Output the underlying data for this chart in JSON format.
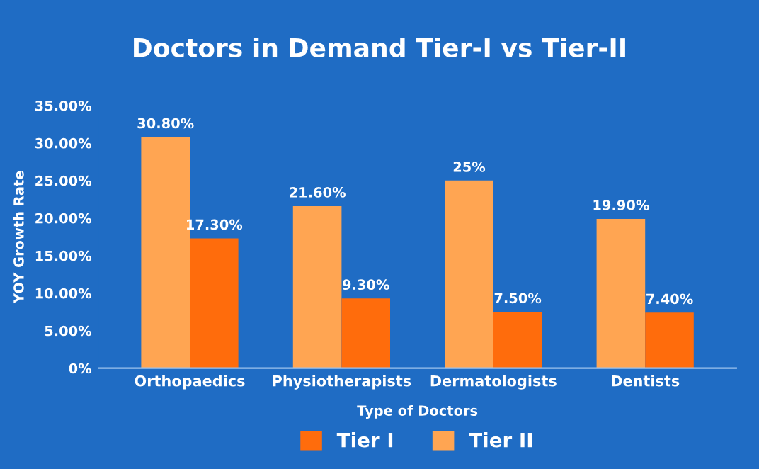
{
  "chart_data": {
    "type": "bar",
    "title": "Doctors in Demand Tier-I vs Tier-II",
    "xlabel": "Type of Doctors",
    "ylabel": "YOY Growth Rate",
    "categories": [
      "Orthopaedics",
      "Physiotherapists",
      "Dermatologists",
      "Dentists"
    ],
    "series": [
      {
        "name": "Tier II",
        "color": "#ffa552",
        "values": [
          30.8,
          21.6,
          25,
          19.9
        ],
        "value_labels": [
          "30.80%",
          "21.60%",
          "25%",
          "19.90%"
        ]
      },
      {
        "name": "Tier I",
        "color": "#ff6c0c",
        "values": [
          17.3,
          9.3,
          7.5,
          7.4
        ],
        "value_labels": [
          "17.30%",
          "9.30%",
          "7.50%",
          "7.40%"
        ]
      }
    ],
    "ylim": [
      0,
      35
    ],
    "yticks": [
      {
        "value": 0,
        "label": "0%"
      },
      {
        "value": 5,
        "label": "5.00%"
      },
      {
        "value": 10,
        "label": "10.00%"
      },
      {
        "value": 15,
        "label": "15.00%"
      },
      {
        "value": 20,
        "label": "20.00%"
      },
      {
        "value": 25,
        "label": "25.00%"
      },
      {
        "value": 30,
        "label": "30.00%"
      },
      {
        "value": 35,
        "label": "35.00%"
      }
    ],
    "grid": false,
    "legend": "bottom"
  }
}
